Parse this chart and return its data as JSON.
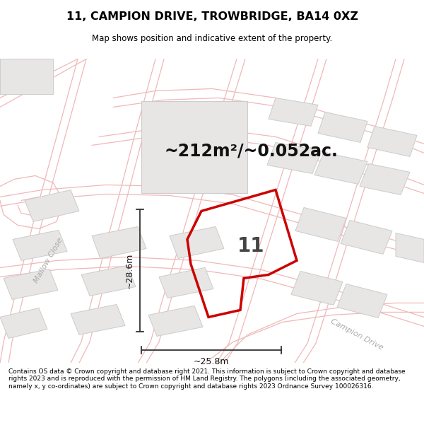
{
  "title": "11, CAMPION DRIVE, TROWBRIDGE, BA14 0XZ",
  "subtitle": "Map shows position and indicative extent of the property.",
  "area_text": "~212m²/~0.052ac.",
  "dimension_h": "~28.6m",
  "dimension_w": "~25.8m",
  "property_number": "11",
  "footer": "Contains OS data © Crown copyright and database right 2021. This information is subject to Crown copyright and database rights 2023 and is reproduced with the permission of HM Land Registry. The polygons (including the associated geometry, namely x, y co-ordinates) are subject to Crown copyright and database rights 2023 Ordnance Survey 100026316.",
  "bg_color": "#ffffff",
  "map_bg": "#ffffff",
  "plot_outline_color": "#cc0000",
  "road_color": "#f0b8b8",
  "building_color": "#e8e5e5",
  "building_outline": "#cccccc",
  "title_color": "#000000",
  "text_color": "#000000",
  "street_label_mallow": "Mallow Close",
  "street_label_campion": "Campion Drive",
  "street_label_color": "#aaaaaa",
  "dim_line_color": "#333333"
}
